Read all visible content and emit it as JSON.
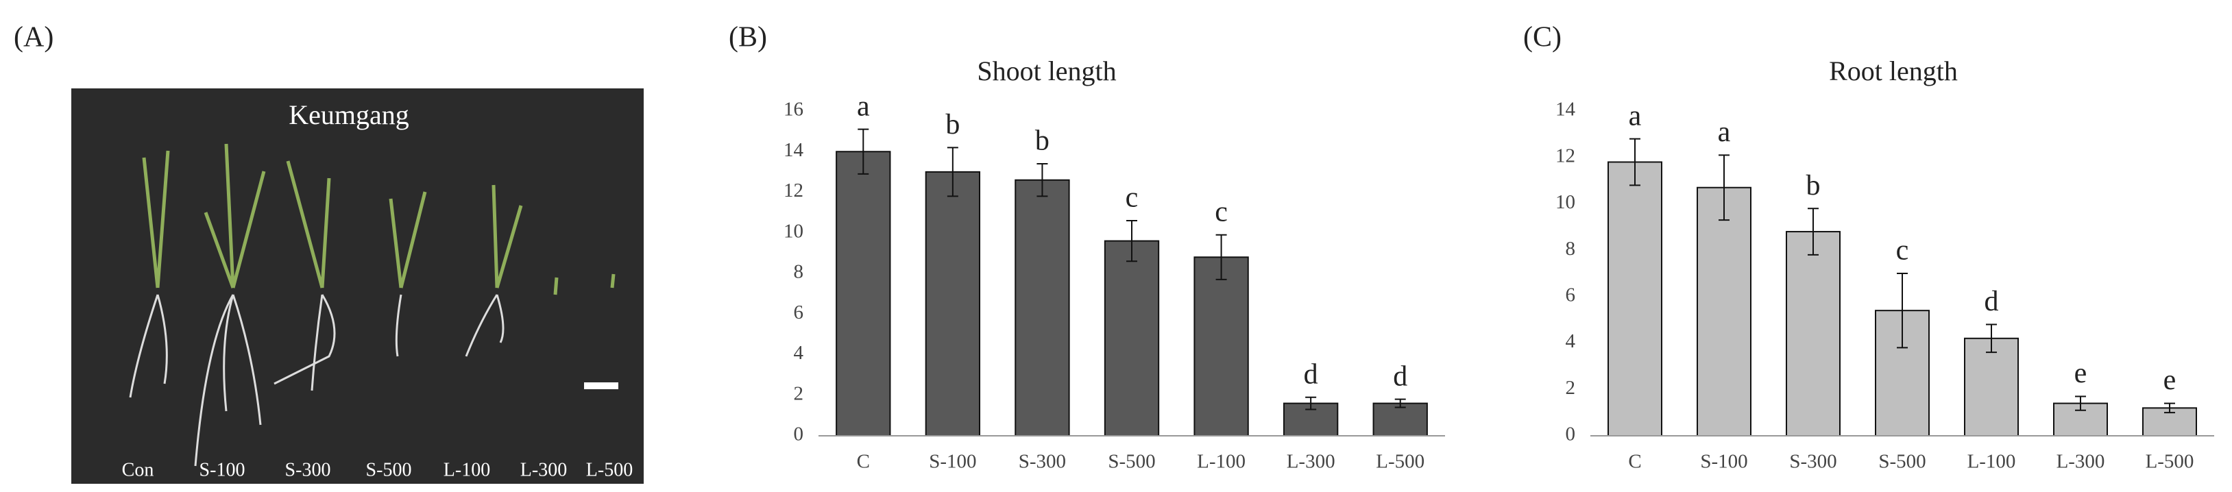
{
  "panel_labels": [
    "(A)",
    "(B)",
    "(C)"
  ],
  "photo": {
    "title": "Keumgang",
    "labels": [
      "Con",
      "S-100",
      "S-300",
      "S-500",
      "L-100",
      "L-300",
      "L-500"
    ]
  },
  "chart_data": [
    {
      "type": "bar",
      "title": "Shoot length",
      "categories": [
        "C",
        "S-100",
        "S-300",
        "S-500",
        "L-100",
        "L-300",
        "L-500"
      ],
      "values": [
        14.0,
        13.0,
        12.6,
        9.6,
        8.8,
        1.6,
        1.6
      ],
      "errors": [
        1.1,
        1.2,
        0.8,
        1.0,
        1.1,
        0.3,
        0.2
      ],
      "annotations": [
        "a",
        "b",
        "b",
        "c",
        "c",
        "d",
        "d"
      ],
      "color": "#595959",
      "ylim": [
        0,
        16
      ],
      "yticks": [
        0,
        2,
        4,
        6,
        8,
        10,
        12,
        14,
        16
      ],
      "grid": false
    },
    {
      "type": "bar",
      "title": "Root length",
      "categories": [
        "C",
        "S-100",
        "S-300",
        "S-500",
        "L-100",
        "L-300",
        "L-500"
      ],
      "values": [
        11.8,
        10.7,
        8.8,
        5.4,
        4.2,
        1.4,
        1.2
      ],
      "errors": [
        1.0,
        1.4,
        1.0,
        1.6,
        0.6,
        0.3,
        0.2
      ],
      "annotations": [
        "a",
        "a",
        "b",
        "c",
        "d",
        "e",
        "e"
      ],
      "color": "#bfbfbf",
      "ylim": [
        0,
        14
      ],
      "yticks": [
        0,
        2,
        4,
        6,
        8,
        10,
        12,
        14
      ],
      "grid": false
    }
  ]
}
